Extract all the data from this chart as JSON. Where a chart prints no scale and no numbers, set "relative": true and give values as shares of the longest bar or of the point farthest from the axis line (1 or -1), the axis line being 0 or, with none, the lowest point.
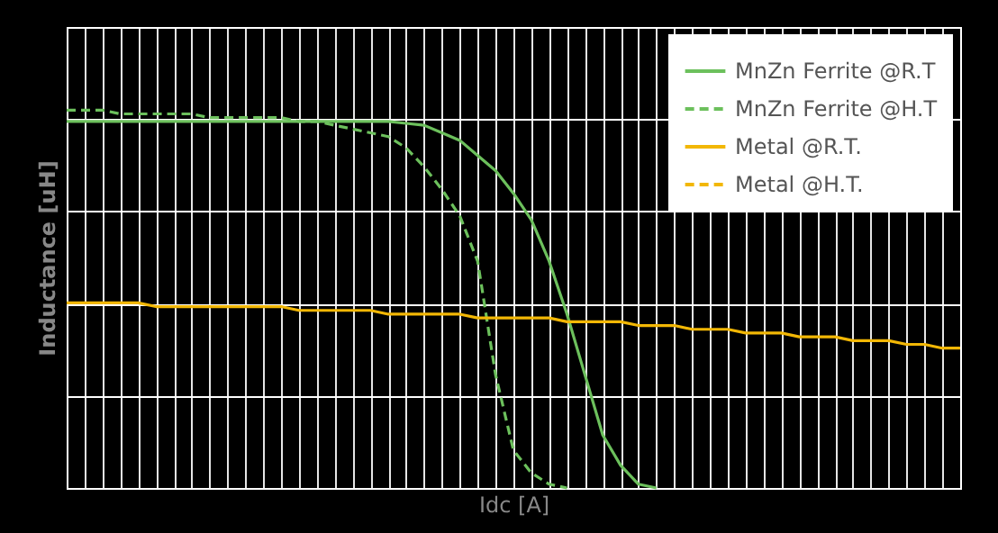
{
  "chart_data": {
    "type": "line",
    "relative": true,
    "xlabel": "Idc [A]",
    "ylabel": "Inductance [uH]",
    "categories": [
      null,
      null,
      null,
      null,
      null,
      null,
      null,
      null,
      null,
      null,
      null,
      null,
      null,
      null,
      null,
      null,
      null,
      null,
      null,
      null,
      null,
      null,
      null,
      null,
      null,
      null,
      null,
      null,
      null,
      null,
      null,
      null,
      null,
      null,
      null,
      null,
      null,
      null,
      null,
      null,
      null,
      null,
      null,
      null,
      null,
      null,
      null,
      null,
      null,
      null,
      null
    ],
    "series": [
      {
        "name": "MnZn Ferrite @R.T",
        "color": "#6cc05c",
        "line_style": "solid",
        "values": [
          0.97,
          0.97,
          0.97,
          0.97,
          0.97,
          0.97,
          0.97,
          0.97,
          0.97,
          0.97,
          0.97,
          0.97,
          0.97,
          0.97,
          0.97,
          0.97,
          0.97,
          0.97,
          0.97,
          0.965,
          0.96,
          0.94,
          0.92,
          0.88,
          0.84,
          0.78,
          0.71,
          0.6,
          0.46,
          0.3,
          0.14,
          0.06,
          0.01,
          0,
          null,
          null,
          null,
          null,
          null,
          null,
          null,
          null,
          null,
          null,
          null,
          null,
          null,
          null,
          null,
          null,
          null
        ]
      },
      {
        "name": "MnZn Ferrite @H.T",
        "color": "#6cc05c",
        "line_style": "dashed",
        "values": [
          1.0,
          1.0,
          1.0,
          0.99,
          0.99,
          0.99,
          0.99,
          0.99,
          0.98,
          0.98,
          0.98,
          0.98,
          0.98,
          0.97,
          0.97,
          0.96,
          0.95,
          0.94,
          0.93,
          0.9,
          0.85,
          0.79,
          0.72,
          0.6,
          0.3,
          0.1,
          0.04,
          0.01,
          0,
          null,
          null,
          null,
          null,
          null,
          null,
          null,
          null,
          null,
          null,
          null,
          null,
          null,
          null,
          null,
          null,
          null,
          null,
          null,
          null,
          null,
          null
        ]
      },
      {
        "name": "Metal @R.T.",
        "color": "#f2b705",
        "line_style": "solid",
        "values": [
          0.49,
          0.49,
          0.49,
          0.49,
          0.49,
          0.48,
          0.48,
          0.48,
          0.48,
          0.48,
          0.48,
          0.48,
          0.48,
          0.47,
          0.47,
          0.47,
          0.47,
          0.47,
          0.46,
          0.46,
          0.46,
          0.46,
          0.46,
          0.45,
          0.45,
          0.45,
          0.45,
          0.45,
          0.44,
          0.44,
          0.44,
          0.44,
          0.43,
          0.43,
          0.43,
          0.42,
          0.42,
          0.42,
          0.41,
          0.41,
          0.41,
          0.4,
          0.4,
          0.4,
          0.39,
          0.39,
          0.39,
          0.38,
          0.38,
          0.37,
          0.37
        ]
      },
      {
        "name": "Metal @H.T.",
        "color": "#f2b705",
        "line_style": "dashed",
        "values": [
          null,
          null,
          null,
          null,
          null,
          null,
          null,
          null,
          null,
          null,
          null,
          null,
          null,
          null,
          null,
          null,
          null,
          null,
          null,
          null,
          null,
          null,
          null,
          null,
          null,
          null,
          null,
          null,
          null,
          null,
          null,
          null,
          null,
          null,
          null,
          null,
          null,
          null,
          null,
          null,
          null,
          null,
          null,
          null,
          null,
          null,
          null,
          null,
          null,
          null,
          null
        ]
      }
    ],
    "grid": true,
    "legend": "top right",
    "tick_labels": false
  }
}
